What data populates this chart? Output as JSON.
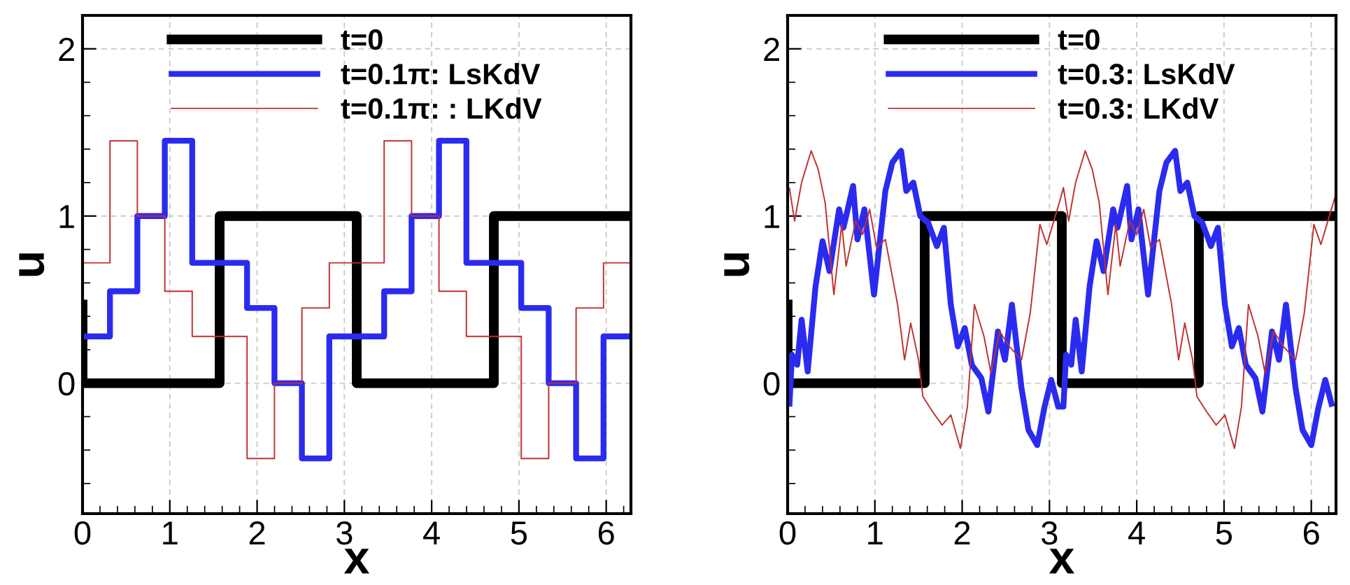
{
  "chart_data": [
    {
      "type": "step",
      "xlabel": "x",
      "ylabel": "u",
      "xlim": [
        0,
        6.2832
      ],
      "ylim": [
        -0.78,
        2.2
      ],
      "xticks": [
        0,
        1,
        2,
        3,
        4,
        5,
        6,
        {
          "value": 0.2,
          "label": null
        },
        {
          "value": 0.4,
          "label": null
        },
        {
          "value": 0.6,
          "label": null
        },
        {
          "value": 0.8,
          "label": null
        },
        {
          "value": 1.2,
          "label": null
        },
        {
          "value": 1.4,
          "label": null
        },
        {
          "value": 1.6,
          "label": null
        },
        {
          "value": 1.8,
          "label": null
        },
        {
          "value": 2.2,
          "label": null
        },
        {
          "value": 2.4,
          "label": null
        },
        {
          "value": 2.6,
          "label": null
        },
        {
          "value": 2.8,
          "label": null
        },
        {
          "value": 3.2,
          "label": null
        },
        {
          "value": 3.4,
          "label": null
        },
        {
          "value": 3.6,
          "label": null
        },
        {
          "value": 3.8,
          "label": null
        },
        {
          "value": 4.2,
          "label": null
        },
        {
          "value": 4.4,
          "label": null
        },
        {
          "value": 4.6,
          "label": null
        },
        {
          "value": 4.8,
          "label": null
        },
        {
          "value": 5.2,
          "label": null
        },
        {
          "value": 5.4,
          "label": null
        },
        {
          "value": 5.6,
          "label": null
        },
        {
          "value": 5.8,
          "label": null
        },
        {
          "value": 6.2,
          "label": null
        }
      ],
      "yticks": [
        0,
        1,
        2,
        {
          "value": -0.6,
          "label": null
        },
        {
          "value": -0.4,
          "label": null
        },
        {
          "value": -0.2,
          "label": null
        },
        {
          "value": 0.2,
          "label": null
        },
        {
          "value": 0.4,
          "label": null
        },
        {
          "value": 0.6,
          "label": null
        },
        {
          "value": 0.8,
          "label": null
        },
        {
          "value": 1.2,
          "label": null
        },
        {
          "value": 1.4,
          "label": null
        },
        {
          "value": 1.6,
          "label": null
        },
        {
          "value": 1.8,
          "label": null
        }
      ],
      "grid": true,
      "legend": "top",
      "series": [
        {
          "name": "t=0",
          "color": "#000000",
          "x": [
            0,
            0,
            1.5708,
            3.1416,
            4.7124,
            6.2832
          ],
          "values": [
            0.5,
            0,
            1,
            0,
            1,
            1
          ]
        },
        {
          "name": "t=0.1π: LsKdV",
          "color": "#2b2bf0",
          "x": [
            0,
            0.3142,
            0.6283,
            0.9425,
            1.2566,
            1.885,
            2.1991,
            2.5133,
            2.8274,
            3.4558,
            3.7699,
            4.0841,
            4.3982,
            5.0265,
            5.3407,
            5.6549,
            5.969,
            6.2832
          ],
          "values": [
            0.28,
            0.55,
            1,
            1.45,
            0.72,
            0.45,
            0,
            -0.45,
            0.28,
            0.55,
            1,
            1.45,
            0.72,
            0.45,
            0,
            -0.45,
            0.28,
            0.28
          ]
        },
        {
          "name": "t=0.1π: : LKdV",
          "color": "#c03030",
          "x": [
            0,
            0.3142,
            0.6283,
            0.9425,
            1.2566,
            1.885,
            2.1991,
            2.5133,
            2.8274,
            3.4558,
            3.7699,
            4.0841,
            4.3982,
            5.0265,
            5.3407,
            5.6549,
            5.969,
            6.2832
          ],
          "values": [
            0.72,
            1.45,
            1,
            0.55,
            0.28,
            -0.45,
            0,
            0.45,
            0.72,
            1.45,
            1,
            0.55,
            0.28,
            -0.45,
            0,
            0.45,
            0.72,
            0.72
          ]
        }
      ]
    },
    {
      "type": "line",
      "xlabel": "x",
      "ylabel": "u",
      "xlim": [
        0,
        6.2832
      ],
      "ylim": [
        -0.78,
        2.2
      ],
      "xticks": [
        0,
        1,
        2,
        3,
        4,
        5,
        6,
        {
          "value": 0.2,
          "label": null
        },
        {
          "value": 0.4,
          "label": null
        },
        {
          "value": 0.6,
          "label": null
        },
        {
          "value": 0.8,
          "label": null
        },
        {
          "value": 1.2,
          "label": null
        },
        {
          "value": 1.4,
          "label": null
        },
        {
          "value": 1.6,
          "label": null
        },
        {
          "value": 1.8,
          "label": null
        },
        {
          "value": 2.2,
          "label": null
        },
        {
          "value": 2.4,
          "label": null
        },
        {
          "value": 2.6,
          "label": null
        },
        {
          "value": 2.8,
          "label": null
        },
        {
          "value": 3.2,
          "label": null
        },
        {
          "value": 3.4,
          "label": null
        },
        {
          "value": 3.6,
          "label": null
        },
        {
          "value": 3.8,
          "label": null
        },
        {
          "value": 4.2,
          "label": null
        },
        {
          "value": 4.4,
          "label": null
        },
        {
          "value": 4.6,
          "label": null
        },
        {
          "value": 4.8,
          "label": null
        },
        {
          "value": 5.2,
          "label": null
        },
        {
          "value": 5.4,
          "label": null
        },
        {
          "value": 5.6,
          "label": null
        },
        {
          "value": 5.8,
          "label": null
        },
        {
          "value": 6.2,
          "label": null
        }
      ],
      "yticks": [
        0,
        1,
        2,
        {
          "value": -0.6,
          "label": null
        },
        {
          "value": -0.4,
          "label": null
        },
        {
          "value": -0.2,
          "label": null
        },
        {
          "value": 0.2,
          "label": null
        },
        {
          "value": 0.4,
          "label": null
        },
        {
          "value": 0.6,
          "label": null
        },
        {
          "value": 0.8,
          "label": null
        },
        {
          "value": 1.2,
          "label": null
        },
        {
          "value": 1.4,
          "label": null
        },
        {
          "value": 1.6,
          "label": null
        },
        {
          "value": 1.8,
          "label": null
        }
      ],
      "grid": true,
      "legend": "top",
      "series": [
        {
          "name": "t=0",
          "color": "#000000",
          "type": "step",
          "x": [
            0,
            0,
            1.5708,
            3.1416,
            4.7124,
            6.2832
          ],
          "values": [
            0.5,
            0,
            1,
            0,
            1,
            1
          ]
        },
        {
          "name": "t=0.3: LsKdV",
          "color": "#2b2bf0",
          "x": [
            0.02,
            0.05,
            0.11,
            0.16,
            0.23,
            0.32,
            0.4,
            0.48,
            0.59,
            0.64,
            0.75,
            0.8,
            0.88,
            0.99,
            1.12,
            1.2,
            1.3,
            1.36,
            1.44,
            1.52,
            1.61,
            1.71,
            1.79,
            1.87,
            1.95,
            2.03,
            2.11,
            2.22,
            2.3,
            2.41,
            2.49,
            2.57,
            2.68,
            2.76,
            2.86,
            2.94,
            3.02,
            3.1,
            3.16,
            3.19,
            3.25,
            3.3,
            3.37,
            3.46,
            3.54,
            3.62,
            3.73,
            3.78,
            3.89,
            3.94,
            4.02,
            4.13,
            4.26,
            4.34,
            4.44,
            4.5,
            4.58,
            4.66,
            4.75,
            4.85,
            4.93,
            5.01,
            5.09,
            5.17,
            5.25,
            5.36,
            5.44,
            5.55,
            5.63,
            5.71,
            5.82,
            5.9,
            6.0,
            6.08,
            6.16,
            6.24
          ],
          "values": [
            -0.14,
            0.17,
            0.11,
            0.38,
            0.07,
            0.58,
            0.85,
            0.67,
            1.04,
            0.93,
            1.18,
            0.86,
            1.04,
            0.53,
            1.15,
            1.32,
            1.39,
            1.15,
            1.2,
            1.0,
            0.96,
            0.82,
            0.93,
            0.47,
            0.22,
            0.33,
            0.11,
            0.03,
            -0.17,
            0.31,
            0.14,
            0.47,
            -0.03,
            -0.28,
            -0.37,
            -0.15,
            0.02,
            -0.14,
            -0.14,
            0.17,
            0.11,
            0.38,
            0.07,
            0.58,
            0.85,
            0.67,
            1.04,
            0.93,
            1.18,
            0.86,
            1.04,
            0.53,
            1.15,
            1.32,
            1.39,
            1.15,
            1.2,
            1.0,
            0.96,
            0.82,
            0.93,
            0.47,
            0.22,
            0.33,
            0.11,
            0.03,
            -0.17,
            0.31,
            0.14,
            0.47,
            -0.03,
            -0.28,
            -0.37,
            -0.15,
            0.02,
            -0.14
          ]
        },
        {
          "name": "t=0.3: LKdV",
          "color": "#c03030",
          "x": [
            0.02,
            0.08,
            0.16,
            0.27,
            0.35,
            0.43,
            0.53,
            0.62,
            0.67,
            0.78,
            0.86,
            0.94,
            1.02,
            1.12,
            1.26,
            1.34,
            1.41,
            1.5,
            1.55,
            1.66,
            1.77,
            1.87,
            1.98,
            2.06,
            2.14,
            2.25,
            2.33,
            2.43,
            2.54,
            2.68,
            2.78,
            2.89,
            2.97,
            3.05,
            3.13,
            3.16,
            3.22,
            3.3,
            3.41,
            3.49,
            3.57,
            3.67,
            3.76,
            3.81,
            3.92,
            4.0,
            4.08,
            4.16,
            4.26,
            4.4,
            4.48,
            4.55,
            4.64,
            4.69,
            4.8,
            4.91,
            5.01,
            5.12,
            5.2,
            5.28,
            5.39,
            5.47,
            5.57,
            5.68,
            5.82,
            5.92,
            6.03,
            6.11,
            6.19,
            6.27
          ],
          "values": [
            1.17,
            0.97,
            1.2,
            1.39,
            1.28,
            1.08,
            0.53,
            0.95,
            0.7,
            0.97,
            0.89,
            1.04,
            0.81,
            0.86,
            0.47,
            0.14,
            0.36,
            0.14,
            -0.08,
            -0.17,
            -0.25,
            -0.19,
            -0.39,
            -0.14,
            0.47,
            0.28,
            0.06,
            0.31,
            0.22,
            0.14,
            0.42,
            0.95,
            0.83,
            0.97,
            1.11,
            1.17,
            0.97,
            1.2,
            1.39,
            1.28,
            1.08,
            0.53,
            0.95,
            0.7,
            0.97,
            0.89,
            1.04,
            0.81,
            0.86,
            0.47,
            0.14,
            0.36,
            0.14,
            -0.08,
            -0.17,
            -0.25,
            -0.19,
            -0.39,
            -0.14,
            0.47,
            0.28,
            0.06,
            0.31,
            0.22,
            0.14,
            0.42,
            0.95,
            0.83,
            0.97,
            1.11
          ]
        }
      ]
    }
  ]
}
